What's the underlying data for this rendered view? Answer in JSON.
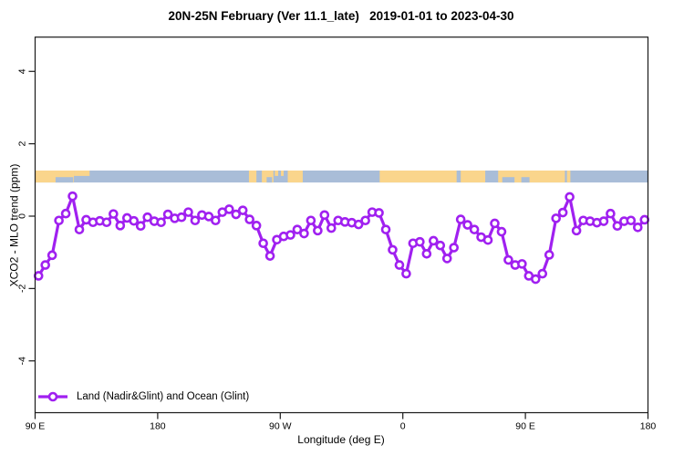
{
  "title": "20N-25N February (Ver 11.1_late)   2019-01-01 to 2023-04-30",
  "legend": {
    "label": "Land (Nadir&Glint) and Ocean (Glint)"
  },
  "colors": {
    "series": "#A020F0",
    "marker_fill": "#ffffff",
    "land": "#FAD58C",
    "ocean": "#A9BDD8",
    "axis": "#1a1a1a"
  },
  "chart_data": {
    "type": "line",
    "title": "20N-25N February (Ver 11.1_late)   2019-01-01 to 2023-04-30",
    "xlabel": "Longitude (deg E)",
    "ylabel": "XCO2 - MLO trend (ppm)",
    "x_axis": {
      "description": "Longitude wrapping eastward from 90E to 180 (450 degrees total)",
      "tick_labels": [
        "90 E",
        "180",
        "90 W",
        "0",
        "90 E",
        "180"
      ],
      "tick_offsets_deg": [
        0,
        90,
        180,
        270,
        360,
        450
      ],
      "range_deg": [
        0,
        450
      ]
    },
    "y_axis": {
      "tick_labels": [
        "4",
        "2",
        "0",
        "-2",
        "-4"
      ],
      "tick_values": [
        4,
        2,
        0,
        -2,
        -4
      ],
      "ylim": [
        -5.4,
        4.95
      ],
      "grid": false
    },
    "legend_position": "bottom-left",
    "series": [
      {
        "name": "Land (Nadir&Glint) and Ocean (Glint)",
        "marker": "open-circle",
        "x_deg": {
          "start": 2.5,
          "step": 5,
          "count": 90
        },
        "values": [
          -1.65,
          -1.35,
          -1.08,
          -0.12,
          0.07,
          0.55,
          -0.37,
          -0.1,
          -0.17,
          -0.13,
          -0.17,
          0.06,
          -0.26,
          -0.05,
          -0.13,
          -0.27,
          -0.03,
          -0.14,
          -0.17,
          0.05,
          -0.06,
          -0.03,
          0.11,
          -0.12,
          0.03,
          -0.01,
          -0.12,
          0.11,
          0.19,
          0.05,
          0.16,
          -0.09,
          -0.26,
          -0.75,
          -1.1,
          -0.65,
          -0.56,
          -0.52,
          -0.37,
          -0.48,
          -0.12,
          -0.4,
          0.03,
          -0.33,
          -0.12,
          -0.16,
          -0.18,
          -0.23,
          -0.12,
          0.11,
          0.09,
          -0.37,
          -0.93,
          -1.35,
          -1.59,
          -0.75,
          -0.71,
          -1.04,
          -0.68,
          -0.81,
          -1.17,
          -0.87,
          -0.09,
          -0.24,
          -0.37,
          -0.58,
          -0.66,
          -0.2,
          -0.43,
          -1.21,
          -1.35,
          -1.32,
          -1.65,
          -1.74,
          -1.59,
          -1.07,
          -0.06,
          0.1,
          0.53,
          -0.4,
          -0.12,
          -0.14,
          -0.18,
          -0.14,
          0.07,
          -0.27,
          -0.14,
          -0.12,
          -0.31,
          -0.1
        ]
      }
    ],
    "map_strip": {
      "description": "20N-25N latitude-band world map drawn as a band near y=1",
      "y_value_range": [
        0.93,
        1.26
      ],
      "land_segments_deg": [
        [
          0,
          28.5
        ],
        [
          157,
          162.5
        ],
        [
          166.5,
          175
        ],
        [
          185.5,
          196.5
        ],
        [
          253,
          309.5
        ],
        [
          312.5,
          330.5
        ],
        [
          340,
          389
        ],
        [
          390.5,
          393
        ]
      ],
      "bottom_notches_deg": [
        [
          15,
          28
        ],
        [
          170,
          174
        ],
        [
          343,
          352
        ],
        [
          357,
          363
        ]
      ],
      "top_specks_deg": [
        [
          28.5,
          40
        ],
        [
          176,
          178.5
        ],
        [
          180.5,
          182.5
        ]
      ]
    }
  }
}
